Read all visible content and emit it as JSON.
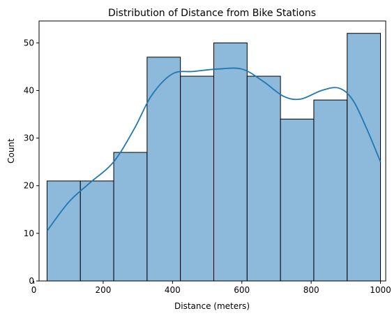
{
  "chart_data": {
    "type": "bar",
    "subtype": "histogram",
    "title": "Distribution of Distance from Bike Stations",
    "xlabel": "Distance (meters)",
    "ylabel": "Count",
    "xlim": [
      15,
      1015
    ],
    "ylim": [
      0,
      54.6
    ],
    "xticks": [
      0,
      200,
      400,
      600,
      800,
      1000
    ],
    "yticks": [
      0,
      10,
      20,
      30,
      40,
      50
    ],
    "bins": [
      {
        "start": 38,
        "end": 134.2,
        "count": 21
      },
      {
        "start": 134.2,
        "end": 230.4,
        "count": 21
      },
      {
        "start": 230.4,
        "end": 326.6,
        "count": 27
      },
      {
        "start": 326.6,
        "end": 422.8,
        "count": 47
      },
      {
        "start": 422.8,
        "end": 519,
        "count": 43
      },
      {
        "start": 519,
        "end": 615.2,
        "count": 50
      },
      {
        "start": 615.2,
        "end": 711.4,
        "count": 43
      },
      {
        "start": 711.4,
        "end": 807.6,
        "count": 34
      },
      {
        "start": 807.6,
        "end": 903.8,
        "count": 38
      },
      {
        "start": 903.8,
        "end": 1000,
        "count": 52
      }
    ],
    "kde": {
      "x": [
        38,
        100,
        160,
        230,
        290,
        340,
        400,
        460,
        530,
        600,
        660,
        720,
        770,
        830,
        880,
        920,
        960,
        1000
      ],
      "y": [
        10.5,
        16.5,
        20.5,
        25,
        32,
        39,
        43.5,
        44,
        44.5,
        44.5,
        42,
        38.8,
        38.2,
        40,
        40.5,
        38,
        32,
        25
      ]
    },
    "grid": false,
    "legend": "none",
    "colors": {
      "bar_fill": "#8db9da",
      "bar_edge": "#000000",
      "kde_line": "#1f77b4"
    }
  }
}
